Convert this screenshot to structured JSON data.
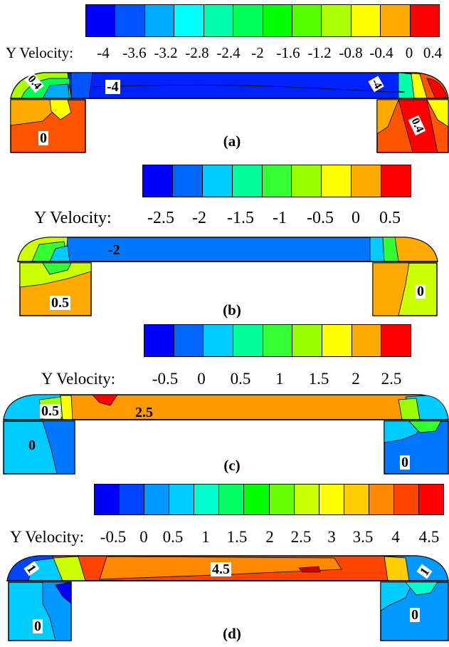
{
  "panels": [
    {
      "id": "a",
      "legend_title": "Y Velocity:",
      "ticks": [
        "-4",
        "-3.6",
        "-3.2",
        "-2.8",
        "-2.4",
        "-2",
        "-1.6",
        "-1.2",
        "-0.8",
        "-0.4",
        "0",
        "0.4"
      ],
      "colors": [
        "#0000ff",
        "#0055ff",
        "#00aaff",
        "#00ffff",
        "#00ffaa",
        "#00ff55",
        "#00ff00",
        "#55ff00",
        "#aaff00",
        "#ffff00",
        "#ffaa00",
        "#ff0000"
      ],
      "contour_labels": {
        "channel": "-4",
        "left_corner": "0.4",
        "right_corner": "-4",
        "left_box": "0",
        "right_box": "0.4"
      },
      "caption": "(a)"
    },
    {
      "id": "b",
      "legend_title": "Y Velocity:",
      "ticks": [
        "-2.5",
        "-2",
        "-1.5",
        "-1",
        "-0.5",
        "0",
        "0.5"
      ],
      "colors": [
        "#0000ff",
        "#0066ff",
        "#00ccff",
        "#00ff99",
        "#33ff33",
        "#99ff00",
        "#ffff00",
        "#ffaa00",
        "#ff0000"
      ],
      "contour_labels": {
        "channel": "-2",
        "left_box": "0.5",
        "right_box": "0"
      },
      "caption": "(b)"
    },
    {
      "id": "c",
      "legend_title": "Y Velocity:",
      "ticks": [
        "-0.5",
        "0",
        "0.5",
        "1",
        "1.5",
        "2",
        "2.5"
      ],
      "colors": [
        "#0000ff",
        "#0066ff",
        "#00ccff",
        "#00ff99",
        "#33ff33",
        "#99ff00",
        "#ffff00",
        "#ffaa00",
        "#ff0000"
      ],
      "contour_labels": {
        "left_corner": "0.5",
        "channel": "2.5",
        "left_box": "0",
        "right_box": "0"
      },
      "caption": "(c)"
    },
    {
      "id": "d",
      "legend_title": "Y Velocity:",
      "ticks": [
        "-0.5",
        "0",
        "0.5",
        "1",
        "1.5",
        "2",
        "2.5",
        "3",
        "3.5",
        "4",
        "4.5"
      ],
      "colors": [
        "#0000ff",
        "#0044ff",
        "#0099ff",
        "#00ccff",
        "#00ffcc",
        "#00ff66",
        "#00ff00",
        "#66ff00",
        "#ccff00",
        "#ffff00",
        "#ffcc00",
        "#ff8800",
        "#ff4400",
        "#ff0000"
      ],
      "contour_labels": {
        "left_corner": "1",
        "channel": "4.5",
        "right_corner": "1",
        "left_box": "0",
        "right_box": "0"
      },
      "caption": "(d)"
    }
  ]
}
